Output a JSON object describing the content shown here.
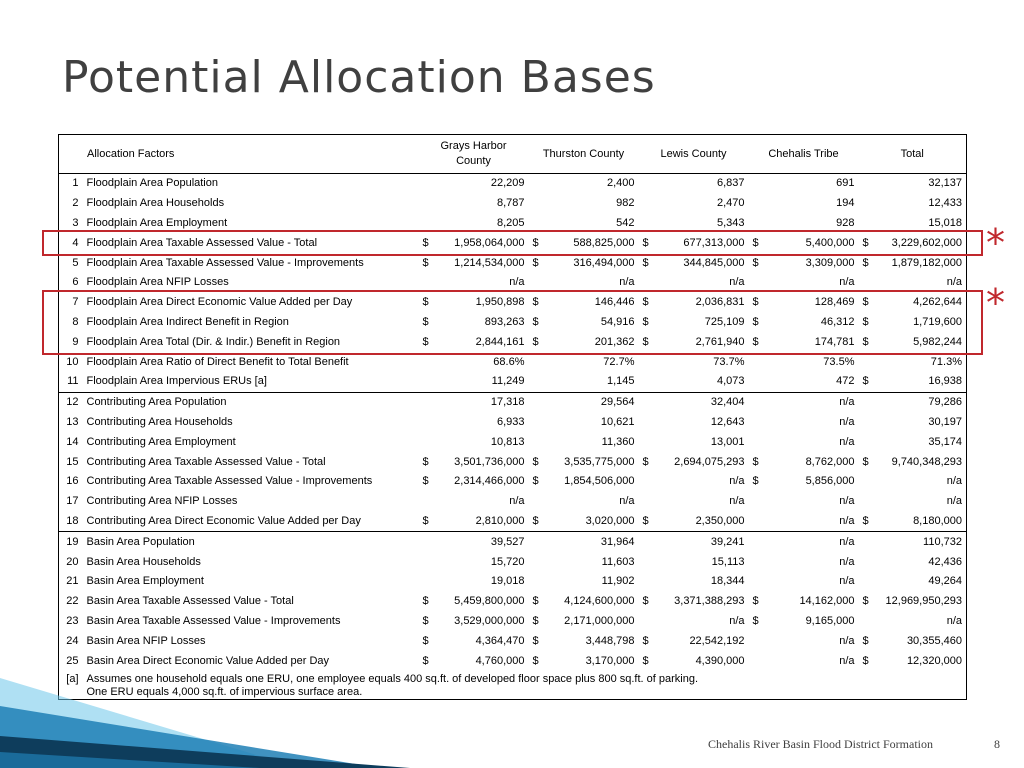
{
  "title": "Potential Allocation Bases",
  "table": {
    "headers": {
      "factor": "Allocation Factors",
      "grays": "Grays Harbor County",
      "thurston": "Thurston County",
      "lewis": "Lewis County",
      "chehalis": "Chehalis Tribe",
      "total": "Total"
    },
    "rows": [
      {
        "n": "1",
        "label": "Floodplain Area Population",
        "cells": [
          [
            "",
            "22,209"
          ],
          [
            "",
            "2,400"
          ],
          [
            "",
            "6,837"
          ],
          [
            "",
            "691"
          ],
          [
            "",
            "32,137"
          ]
        ]
      },
      {
        "n": "2",
        "label": "Floodplain Area Households",
        "cells": [
          [
            "",
            "8,787"
          ],
          [
            "",
            "982"
          ],
          [
            "",
            "2,470"
          ],
          [
            "",
            "194"
          ],
          [
            "",
            "12,433"
          ]
        ]
      },
      {
        "n": "3",
        "label": "Floodplain Area Employment",
        "cells": [
          [
            "",
            "8,205"
          ],
          [
            "",
            "542"
          ],
          [
            "",
            "5,343"
          ],
          [
            "",
            "928"
          ],
          [
            "",
            "15,018"
          ]
        ]
      },
      {
        "n": "4",
        "label": "Floodplain Area Taxable Assessed Value - Total",
        "cells": [
          [
            "$",
            "1,958,064,000"
          ],
          [
            "$",
            "588,825,000"
          ],
          [
            "$",
            "677,313,000"
          ],
          [
            "$",
            "5,400,000"
          ],
          [
            "$",
            "3,229,602,000"
          ]
        ]
      },
      {
        "n": "5",
        "label": "Floodplain Area Taxable Assessed Value - Improvements",
        "cells": [
          [
            "$",
            "1,214,534,000"
          ],
          [
            "$",
            "316,494,000"
          ],
          [
            "$",
            "344,845,000"
          ],
          [
            "$",
            "3,309,000"
          ],
          [
            "$",
            "1,879,182,000"
          ]
        ]
      },
      {
        "n": "6",
        "label": "Floodplain Area NFIP Losses",
        "cells": [
          [
            "",
            "n/a"
          ],
          [
            "",
            "n/a"
          ],
          [
            "",
            "n/a"
          ],
          [
            "",
            "n/a"
          ],
          [
            "",
            "n/a"
          ]
        ]
      },
      {
        "n": "7",
        "label": "Floodplain Area Direct Economic Value Added per Day",
        "cells": [
          [
            "$",
            "1,950,898"
          ],
          [
            "$",
            "146,446"
          ],
          [
            "$",
            "2,036,831"
          ],
          [
            "$",
            "128,469"
          ],
          [
            "$",
            "4,262,644"
          ]
        ]
      },
      {
        "n": "8",
        "label": "Floodplain Area Indirect Benefit in Region",
        "cells": [
          [
            "$",
            "893,263"
          ],
          [
            "$",
            "54,916"
          ],
          [
            "$",
            "725,109"
          ],
          [
            "$",
            "46,312"
          ],
          [
            "$",
            "1,719,600"
          ]
        ]
      },
      {
        "n": "9",
        "label": "Floodplain Area Total (Dir. & Indir.) Benefit in Region",
        "cells": [
          [
            "$",
            "2,844,161"
          ],
          [
            "$",
            "201,362"
          ],
          [
            "$",
            "2,761,940"
          ],
          [
            "$",
            "174,781"
          ],
          [
            "$",
            "5,982,244"
          ]
        ]
      },
      {
        "n": "10",
        "label": "Floodplain Area Ratio of Direct Benefit to Total Benefit",
        "cells": [
          [
            "",
            "68.6%"
          ],
          [
            "",
            "72.7%"
          ],
          [
            "",
            "73.7%"
          ],
          [
            "",
            "73.5%"
          ],
          [
            "",
            "71.3%"
          ]
        ]
      },
      {
        "n": "11",
        "label": "Floodplain Area Impervious ERUs",
        "ref": "[a]",
        "cells": [
          [
            "",
            "11,249"
          ],
          [
            "",
            "1,145"
          ],
          [
            "",
            "4,073"
          ],
          [
            "",
            "472"
          ],
          [
            "$",
            "16,938"
          ]
        ]
      },
      {
        "n": "12",
        "label": "Contributing Area Population",
        "cells": [
          [
            "",
            "17,318"
          ],
          [
            "",
            "29,564"
          ],
          [
            "",
            "32,404"
          ],
          [
            "",
            "n/a"
          ],
          [
            "",
            "79,286"
          ]
        ]
      },
      {
        "n": "13",
        "label": "Contributing Area Households",
        "cells": [
          [
            "",
            "6,933"
          ],
          [
            "",
            "10,621"
          ],
          [
            "",
            "12,643"
          ],
          [
            "",
            "n/a"
          ],
          [
            "",
            "30,197"
          ]
        ]
      },
      {
        "n": "14",
        "label": "Contributing Area Employment",
        "cells": [
          [
            "",
            "10,813"
          ],
          [
            "",
            "11,360"
          ],
          [
            "",
            "13,001"
          ],
          [
            "",
            "n/a"
          ],
          [
            "",
            "35,174"
          ]
        ]
      },
      {
        "n": "15",
        "label": "Contributing Area Taxable Assessed Value - Total",
        "cells": [
          [
            "$",
            "3,501,736,000"
          ],
          [
            "$",
            "3,535,775,000"
          ],
          [
            "$",
            "2,694,075,293"
          ],
          [
            "$",
            "8,762,000"
          ],
          [
            "$",
            "9,740,348,293"
          ]
        ]
      },
      {
        "n": "16",
        "label": "Contributing Area Taxable Assessed Value - Improvements",
        "cells": [
          [
            "$",
            "2,314,466,000"
          ],
          [
            "$",
            "1,854,506,000"
          ],
          [
            "",
            "n/a"
          ],
          [
            "$",
            "5,856,000"
          ],
          [
            "",
            "n/a"
          ]
        ]
      },
      {
        "n": "17",
        "label": "Contributing Area NFIP Losses",
        "cells": [
          [
            "",
            "n/a"
          ],
          [
            "",
            "n/a"
          ],
          [
            "",
            "n/a"
          ],
          [
            "",
            "n/a"
          ],
          [
            "",
            "n/a"
          ]
        ]
      },
      {
        "n": "18",
        "label": "Contributing Area Direct Economic Value Added per Day",
        "cells": [
          [
            "$",
            "2,810,000"
          ],
          [
            "$",
            "3,020,000"
          ],
          [
            "$",
            "2,350,000"
          ],
          [
            "",
            "n/a"
          ],
          [
            "$",
            "8,180,000"
          ]
        ]
      },
      {
        "n": "19",
        "label": "Basin Area Population",
        "cells": [
          [
            "",
            "39,527"
          ],
          [
            "",
            "31,964"
          ],
          [
            "",
            "39,241"
          ],
          [
            "",
            "n/a"
          ],
          [
            "",
            "110,732"
          ]
        ]
      },
      {
        "n": "20",
        "label": "Basin Area Households",
        "cells": [
          [
            "",
            "15,720"
          ],
          [
            "",
            "11,603"
          ],
          [
            "",
            "15,113"
          ],
          [
            "",
            "n/a"
          ],
          [
            "",
            "42,436"
          ]
        ]
      },
      {
        "n": "21",
        "label": "Basin Area Employment",
        "cells": [
          [
            "",
            "19,018"
          ],
          [
            "",
            "11,902"
          ],
          [
            "",
            "18,344"
          ],
          [
            "",
            "n/a"
          ],
          [
            "",
            "49,264"
          ]
        ]
      },
      {
        "n": "22",
        "label": "Basin Area Taxable Assessed Value - Total",
        "cells": [
          [
            "$",
            "5,459,800,000"
          ],
          [
            "$",
            "4,124,600,000"
          ],
          [
            "$",
            "3,371,388,293"
          ],
          [
            "$",
            "14,162,000"
          ],
          [
            "$",
            "12,969,950,293"
          ]
        ]
      },
      {
        "n": "23",
        "label": "Basin Area Taxable Assessed Value - Improvements",
        "cells": [
          [
            "$",
            "3,529,000,000"
          ],
          [
            "$",
            "2,171,000,000"
          ],
          [
            "",
            "n/a"
          ],
          [
            "$",
            "9,165,000"
          ],
          [
            "",
            "n/a"
          ]
        ]
      },
      {
        "n": "24",
        "label": "Basin Area NFIP Losses",
        "cells": [
          [
            "$",
            "4,364,470"
          ],
          [
            "$",
            "3,448,798"
          ],
          [
            "$",
            "22,542,192"
          ],
          [
            "",
            "n/a"
          ],
          [
            "$",
            "30,355,460"
          ]
        ]
      },
      {
        "n": "25",
        "label": "Basin Area Direct Economic Value Added per Day",
        "cells": [
          [
            "$",
            "4,760,000"
          ],
          [
            "$",
            "3,170,000"
          ],
          [
            "$",
            "4,390,000"
          ],
          [
            "",
            "n/a"
          ],
          [
            "$",
            "12,320,000"
          ]
        ]
      }
    ],
    "group_end_rows": [
      11,
      18
    ],
    "footnote": {
      "marker": "[a]",
      "line1": "Assumes one household equals one ERU, one employee equals 400 sq.ft. of developed floor space plus 800 sq.ft. of parking.",
      "line2": "One ERU equals 4,000 sq.ft. of impervious surface area."
    }
  },
  "highlights": {
    "color": "#c0282d",
    "asterisk_glyph": "*",
    "boxes": [
      {
        "rows": [
          4
        ]
      },
      {
        "rows": [
          7,
          8,
          9
        ]
      }
    ]
  },
  "footer": {
    "text": "Chehalis River Basin Flood District Formation",
    "page": "8"
  },
  "colors": {
    "title": "#404040",
    "decor_dark": "#0e3d5c",
    "decor_mid": "#1f7fb5",
    "decor_light": "#6ec6ea"
  }
}
